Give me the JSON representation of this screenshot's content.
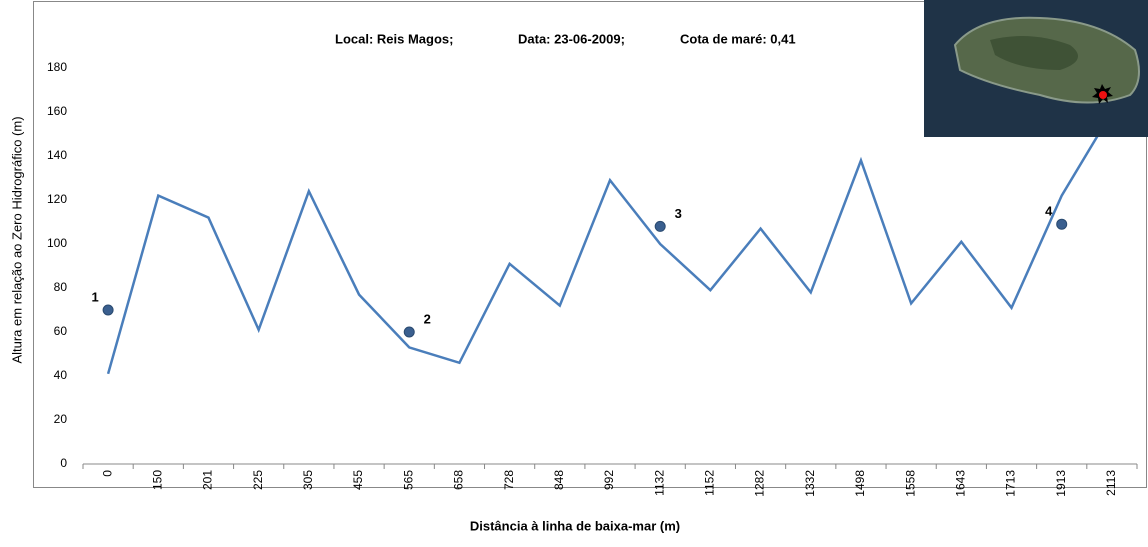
{
  "chart_data": {
    "type": "line",
    "title_parts": [
      "Local: Reis Magos;",
      "Data: 23-06-2009;",
      "Cota de maré: 0,41"
    ],
    "x_label": "Distância à linha de baixa-mar (m)",
    "y_label": "Altura em relação ao Zero Hidrográfico (m)",
    "categories": [
      "0",
      "150",
      "201",
      "225",
      "305",
      "455",
      "565",
      "658",
      "728",
      "848",
      "992",
      "1132",
      "1152",
      "1282",
      "1332",
      "1498",
      "1558",
      "1643",
      "1713",
      "1913",
      "2113"
    ],
    "series": [
      {
        "color": "#4a7ebb",
        "values": [
          41,
          122,
          112,
          61,
          124,
          77,
          53,
          46,
          91,
          72,
          129,
          100,
          79,
          107,
          78,
          138,
          73,
          101,
          71,
          122,
          160
        ]
      }
    ],
    "markers": {
      "color": "#3a5f8f",
      "x": [
        "0",
        "565",
        "1132",
        "1913"
      ],
      "labels": [
        "1",
        "2",
        "3",
        "4"
      ],
      "values": [
        70,
        60,
        108,
        109
      ]
    },
    "ylim": [
      0,
      180
    ],
    "yticks": [
      0,
      20,
      40,
      60,
      80,
      100,
      120,
      140,
      160,
      180
    ],
    "grid": false
  }
}
